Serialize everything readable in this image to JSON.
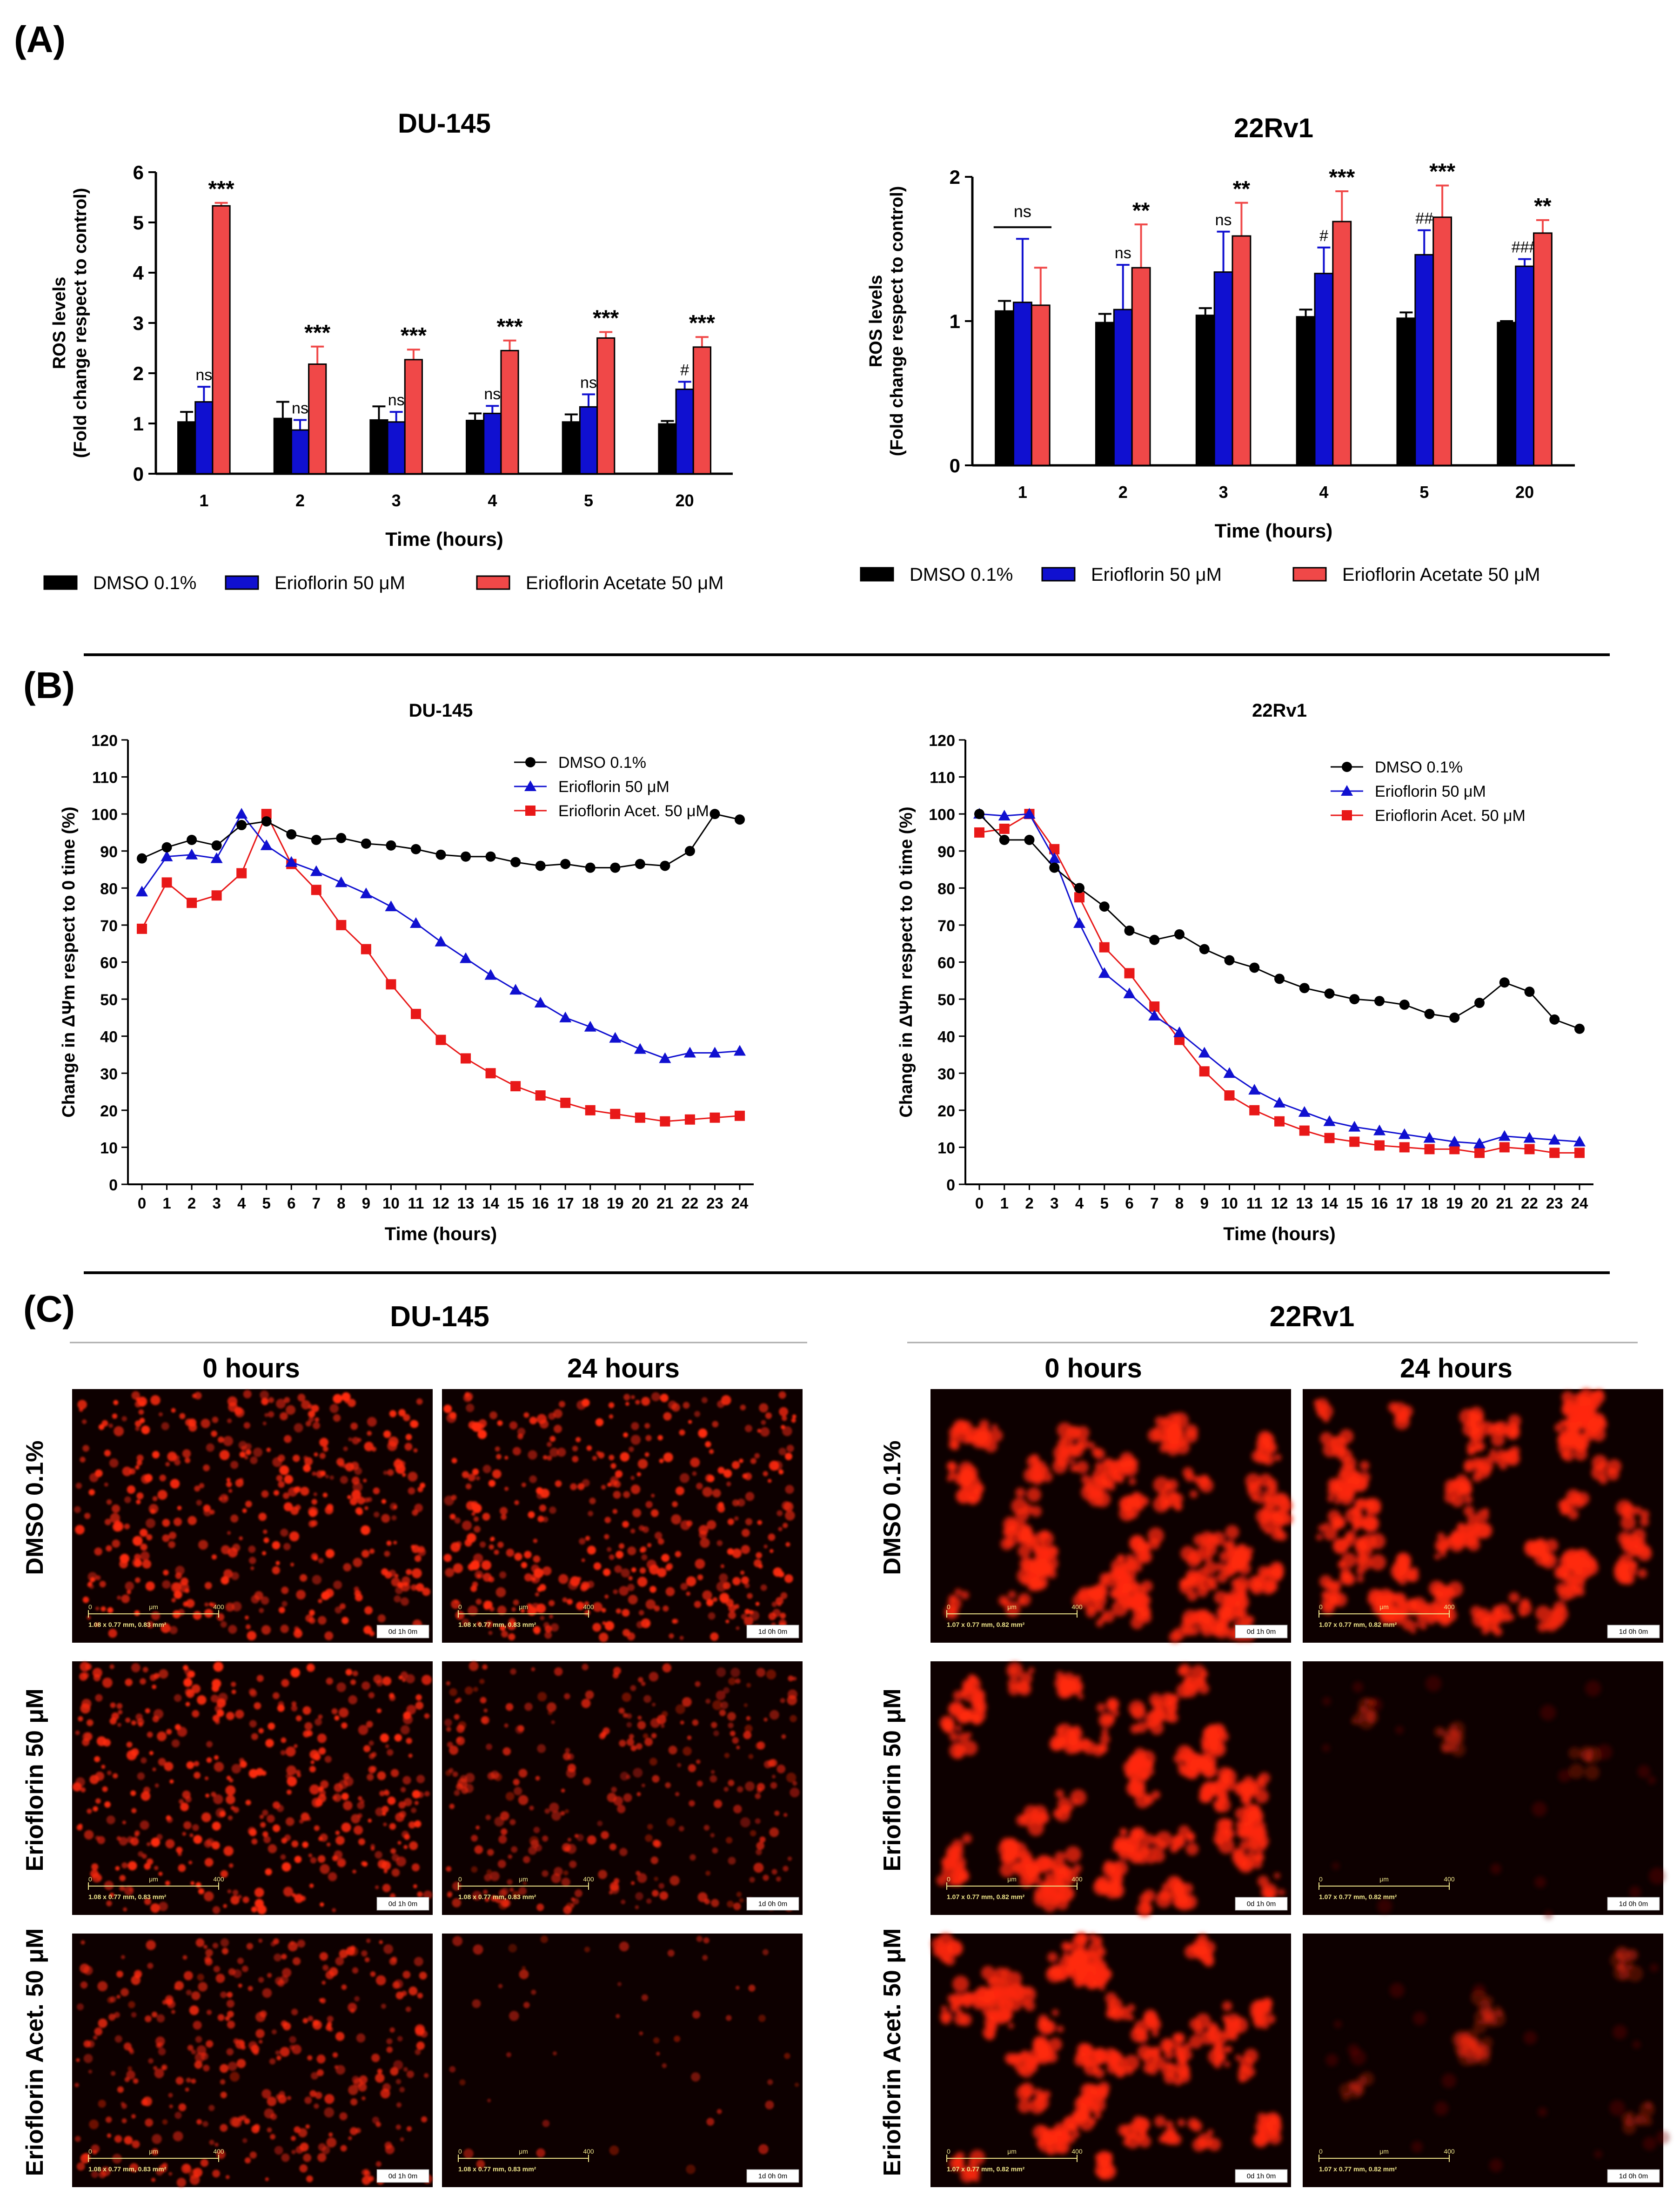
{
  "panels": {
    "A_label": "(A)",
    "B_label": "(B)",
    "C_label": "(C)"
  },
  "colors": {
    "dmso": "#000000",
    "erio": "#1010d0",
    "acet": "#f04848",
    "acet_line": "#e81818",
    "micro_bg": "#0d0000",
    "micro_cell": "#ff2a10",
    "scale_text": "#f0e68c"
  },
  "chart_data": [
    {
      "id": "A-DU145",
      "type": "bar",
      "title": "DU-145",
      "xlabel": "Time (hours)",
      "ylabel_line1": "ROS levels",
      "ylabel_line2": "(Fold change respect to control)",
      "categories": [
        "1",
        "2",
        "3",
        "4",
        "5",
        "20"
      ],
      "ylim": [
        0,
        6
      ],
      "yticks": [
        "0",
        "1",
        "2",
        "3",
        "4",
        "5",
        "6"
      ],
      "series": [
        {
          "name": "DMSO 0.1%",
          "color": "#000000",
          "values": [
            1.03,
            1.1,
            1.07,
            1.06,
            1.03,
            0.99
          ],
          "errors": [
            0.2,
            0.33,
            0.27,
            0.14,
            0.15,
            0.06
          ]
        },
        {
          "name": "Erioflorin 50 μM",
          "color": "#1010d0",
          "values": [
            1.43,
            0.87,
            1.03,
            1.2,
            1.33,
            1.68
          ],
          "errors": [
            0.3,
            0.2,
            0.2,
            0.15,
            0.25,
            0.15
          ]
        },
        {
          "name": "Erioflorin Acetate 50 μM",
          "color": "#f04848",
          "values": [
            5.33,
            2.18,
            2.27,
            2.45,
            2.7,
            2.52
          ],
          "errors": [
            0.06,
            0.35,
            0.2,
            0.2,
            0.12,
            0.2
          ]
        }
      ],
      "annotations": [
        [
          "",
          "ns",
          "***"
        ],
        [
          "",
          "ns",
          "***"
        ],
        [
          "",
          "ns",
          "***"
        ],
        [
          "",
          "ns",
          "***"
        ],
        [
          "",
          "ns",
          "***"
        ],
        [
          "",
          "#",
          "***"
        ]
      ],
      "legend": [
        "DMSO 0.1%",
        "Erioflorin 50 μM",
        "Erioflorin Acetate 50 μM"
      ]
    },
    {
      "id": "A-22Rv1",
      "type": "bar",
      "title": "22Rv1",
      "xlabel": "Time (hours)",
      "ylabel_line1": "ROS levels",
      "ylabel_line2": "(Fold change respect to control)",
      "categories": [
        "1",
        "2",
        "3",
        "4",
        "5",
        "20"
      ],
      "ylim": [
        0,
        2
      ],
      "yticks": [
        "0",
        "1",
        "2"
      ],
      "series": [
        {
          "name": "DMSO 0.1%",
          "color": "#000000",
          "values": [
            1.07,
            0.99,
            1.04,
            1.03,
            1.02,
            0.99
          ],
          "errors": [
            0.07,
            0.06,
            0.05,
            0.05,
            0.04,
            0.01
          ]
        },
        {
          "name": "Erioflorin 50 μM",
          "color": "#1010d0",
          "values": [
            1.13,
            1.08,
            1.34,
            1.33,
            1.46,
            1.38
          ],
          "errors": [
            0.44,
            0.31,
            0.28,
            0.18,
            0.17,
            0.05
          ]
        },
        {
          "name": "Erioflorin Acetate 50 μM",
          "color": "#f04848",
          "values": [
            1.11,
            1.37,
            1.59,
            1.69,
            1.72,
            1.61
          ],
          "errors": [
            0.26,
            0.3,
            0.23,
            0.21,
            0.22,
            0.09
          ]
        }
      ],
      "annotations": [
        [
          "",
          "",
          ""
        ],
        [
          "",
          "ns",
          "**"
        ],
        [
          "",
          "ns",
          "**"
        ],
        [
          "",
          "#",
          "***"
        ],
        [
          "",
          "##",
          "***"
        ],
        [
          "",
          "###",
          "**"
        ]
      ],
      "bracket": {
        "category": 0,
        "label": "ns"
      },
      "legend": [
        "DMSO 0.1%",
        "Erioflorin 50 μM",
        "Erioflorin Acetate 50 μM"
      ]
    },
    {
      "id": "B-DU145",
      "type": "line",
      "title": "DU-145",
      "xlabel": "Time (hours)",
      "ylabel": "Change in ΔΨm respect to 0 time (%)",
      "x": [
        0,
        1,
        2,
        3,
        4,
        5,
        6,
        7,
        8,
        9,
        10,
        11,
        12,
        13,
        14,
        15,
        16,
        17,
        18,
        19,
        20,
        21,
        22,
        23,
        24
      ],
      "ylim": [
        0,
        120
      ],
      "yticks": [
        "0",
        "10",
        "20",
        "30",
        "40",
        "50",
        "60",
        "70",
        "80",
        "90",
        "100",
        "110",
        "120"
      ],
      "series": [
        {
          "name": "DMSO 0.1%",
          "marker": "circle",
          "color": "#000000",
          "values": [
            88,
            91,
            93,
            91.5,
            97,
            98,
            94.5,
            93,
            93.5,
            92,
            91.5,
            90.5,
            89,
            88.5,
            88.5,
            87,
            86,
            86.5,
            85.5,
            85.5,
            86.5,
            86,
            90,
            100,
            98.5
          ]
        },
        {
          "name": "Erioflorin 50 μM",
          "marker": "triangle",
          "color": "#1010d0",
          "values": [
            79,
            88.5,
            89,
            88,
            100,
            91.5,
            87,
            84.5,
            81.5,
            78.5,
            75,
            70.5,
            65.5,
            61,
            56.5,
            52.5,
            49,
            45,
            42.5,
            39.5,
            36.5,
            34,
            35.5,
            35.5,
            36
          ]
        },
        {
          "name": "Erioflorin Acet. 50 μM",
          "marker": "square",
          "color": "#e81818",
          "values": [
            69,
            81.5,
            76,
            78,
            84,
            100,
            86.5,
            79.5,
            70,
            63.5,
            54,
            46,
            39,
            34,
            30,
            26.5,
            24,
            22,
            20,
            19,
            18,
            17,
            17.5,
            18,
            18.5
          ]
        }
      ],
      "legend": [
        "DMSO 0.1%",
        "Erioflorin 50 μM",
        "Erioflorin Acet. 50 μM"
      ]
    },
    {
      "id": "B-22Rv1",
      "type": "line",
      "title": "22Rv1",
      "xlabel": "Time (hours)",
      "ylabel": "Change in ΔΨm respect to 0 time (%)",
      "x": [
        0,
        1,
        2,
        3,
        4,
        5,
        6,
        7,
        8,
        9,
        10,
        11,
        12,
        13,
        14,
        15,
        16,
        17,
        18,
        19,
        20,
        21,
        22,
        23,
        24
      ],
      "ylim": [
        0,
        120
      ],
      "yticks": [
        "0",
        "10",
        "20",
        "30",
        "40",
        "50",
        "60",
        "70",
        "80",
        "90",
        "100",
        "110",
        "120"
      ],
      "series": [
        {
          "name": "DMSO 0.1%",
          "marker": "circle",
          "color": "#000000",
          "values": [
            100,
            93,
            93,
            85.5,
            80,
            75,
            68.5,
            66,
            67.5,
            63.5,
            60.5,
            58.5,
            55.5,
            53,
            51.5,
            50,
            49.5,
            48.5,
            46,
            45,
            49,
            54.5,
            52,
            44.5,
            42
          ]
        },
        {
          "name": "Erioflorin 50 μM",
          "marker": "triangle",
          "color": "#1010d0",
          "values": [
            100,
            99.5,
            100,
            88,
            70.5,
            57,
            51.5,
            45.5,
            41,
            35.5,
            30,
            25.5,
            22,
            19.5,
            17,
            15.5,
            14.5,
            13.5,
            12.5,
            11.5,
            11,
            13,
            12.5,
            12,
            11.5
          ]
        },
        {
          "name": "Erioflorin Acet. 50 μM",
          "marker": "square",
          "color": "#e81818",
          "values": [
            95,
            96,
            100,
            90.5,
            77.5,
            64,
            57,
            48,
            39,
            30.5,
            24,
            20,
            17,
            14.5,
            12.5,
            11.5,
            10.5,
            10,
            9.5,
            9.5,
            8.5,
            10,
            9.5,
            8.5,
            8.5
          ]
        }
      ],
      "legend": [
        "DMSO 0.1%",
        "Erioflorin 50 μM",
        "Erioflorin Acet. 50 μM"
      ]
    }
  ],
  "micrographs": {
    "du145_title": "DU-145",
    "rv1_title": "22Rv1",
    "col_0h": "0 hours",
    "col_24h": "24 hours",
    "rows": [
      "DMSO 0.1%",
      "Erioflorin 50 μM",
      "Erioflorin Acet. 50 μM"
    ],
    "scale_zero": "0",
    "scale_unit": "μm",
    "scale_max": "400",
    "dims_du145": "1.08 x 0.77 mm, 0.83 mm²",
    "dims_rv1": "1.07 x 0.77 mm, 0.82 mm²",
    "time_0h": "0d 1h 0m",
    "time_24h": "1d 0h 0m",
    "cell_density": {
      "du145": [
        [
          1.0,
          1.0
        ],
        [
          1.0,
          0.75
        ],
        [
          0.85,
          0.12
        ]
      ],
      "rv1": [
        [
          0.9,
          0.85
        ],
        [
          0.85,
          0.05
        ],
        [
          0.8,
          0.12
        ]
      ]
    }
  }
}
